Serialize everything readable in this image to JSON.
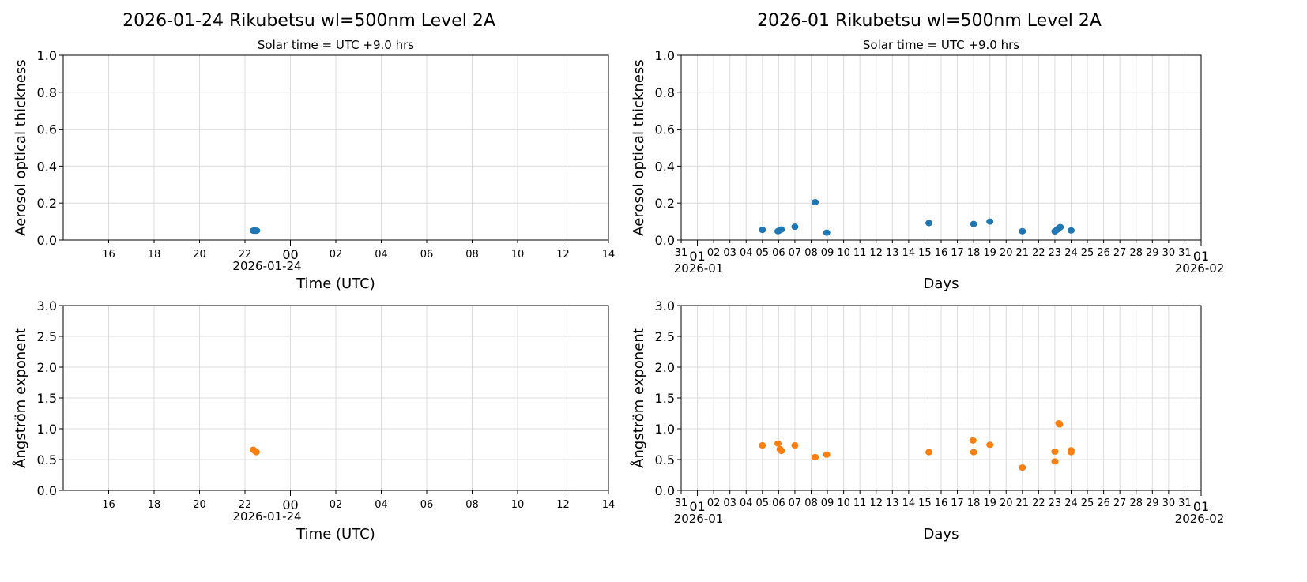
{
  "titles": {
    "left": "2026-01-24  Rikubetsu  wl=500nm  Level 2A",
    "right": "2026-01  Rikubetsu  wl=500nm  Level 2A"
  },
  "chart_data": [
    {
      "type": "scatter",
      "subtitle": "Solar time = UTC +9.0 hrs",
      "xlabel": "Time (UTC)",
      "ylabel": "Aerosol optical thickness",
      "xlim": [
        "2026-01-23T15:00",
        "2026-01-24T15:00"
      ],
      "ylim": [
        0,
        1.0
      ],
      "yticks": [
        "0.0",
        "0.2",
        "0.4",
        "0.6",
        "0.8",
        "1.0"
      ],
      "xticks": [
        "16",
        "18",
        "20",
        "22",
        "00",
        "02",
        "04",
        "06",
        "08",
        "10",
        "12",
        "14"
      ],
      "xdate_label": "2026-01-24",
      "grid": true,
      "color": "#1f77b4",
      "points": [
        [
          "2026-01-23T23:22",
          0.051
        ],
        [
          "2026-01-23T23:25",
          0.052
        ],
        [
          "2026-01-23T23:28",
          0.05
        ],
        [
          "2026-01-23T23:31",
          0.051
        ]
      ]
    },
    {
      "type": "scatter",
      "subtitle": "Solar time = UTC +9.0 hrs",
      "xlabel": "Days",
      "ylabel": "Aerosol optical thickness",
      "xlim": [
        "2025-12-31",
        "2026-02-01"
      ],
      "ylim": [
        0,
        1.0
      ],
      "yticks": [
        "0.0",
        "0.2",
        "0.4",
        "0.6",
        "0.8",
        "1.0"
      ],
      "xdate_labels": [
        "2026-01",
        "2026-02"
      ],
      "grid": true,
      "color": "#1f77b4",
      "points": [
        [
          "2026-01-05T00:00",
          0.055
        ],
        [
          "2026-01-05T23:00",
          0.048
        ],
        [
          "2026-01-06T01:00",
          0.052
        ],
        [
          "2026-01-06T04:00",
          0.057
        ],
        [
          "2026-01-07T00:00",
          0.072
        ],
        [
          "2026-01-08T06:00",
          0.205
        ],
        [
          "2026-01-08T23:00",
          0.04
        ],
        [
          "2026-01-15T06:00",
          0.092
        ],
        [
          "2026-01-18T00:00",
          0.087
        ],
        [
          "2026-01-19T00:00",
          0.1
        ],
        [
          "2026-01-21T00:00",
          0.048
        ],
        [
          "2026-01-23T00:00",
          0.047
        ],
        [
          "2026-01-23T03:00",
          0.055
        ],
        [
          "2026-01-23T06:00",
          0.065
        ],
        [
          "2026-01-23T08:00",
          0.07
        ],
        [
          "2026-01-24T00:00",
          0.052
        ]
      ]
    },
    {
      "type": "scatter",
      "xlabel": "Time (UTC)",
      "ylabel": "Ångström exponent",
      "xlim": [
        "2026-01-23T15:00",
        "2026-01-24T15:00"
      ],
      "ylim": [
        0,
        3.0
      ],
      "yticks": [
        "0.0",
        "0.5",
        "1.0",
        "1.5",
        "2.0",
        "2.5",
        "3.0"
      ],
      "xticks": [
        "16",
        "18",
        "20",
        "22",
        "00",
        "02",
        "04",
        "06",
        "08",
        "10",
        "12",
        "14"
      ],
      "xdate_label": "2026-01-24",
      "grid": true,
      "color": "#ff7f0e",
      "points": [
        [
          "2026-01-23T23:22",
          0.66
        ],
        [
          "2026-01-23T23:26",
          0.64
        ],
        [
          "2026-01-23T23:30",
          0.62
        ]
      ]
    },
    {
      "type": "scatter",
      "xlabel": "Days",
      "ylabel": "Ångström exponent",
      "xlim": [
        "2025-12-31",
        "2026-02-01"
      ],
      "ylim": [
        0,
        3.0
      ],
      "yticks": [
        "0.0",
        "0.5",
        "1.0",
        "1.5",
        "2.0",
        "2.5",
        "3.0"
      ],
      "xdate_labels": [
        "2026-01",
        "2026-02"
      ],
      "grid": true,
      "color": "#ff7f0e",
      "points": [
        [
          "2026-01-05T00:00",
          0.73
        ],
        [
          "2026-01-05T23:00",
          0.76
        ],
        [
          "2026-01-06T02:00",
          0.67
        ],
        [
          "2026-01-06T04:00",
          0.64
        ],
        [
          "2026-01-07T00:00",
          0.73
        ],
        [
          "2026-01-08T06:00",
          0.54
        ],
        [
          "2026-01-08T23:00",
          0.58
        ],
        [
          "2026-01-15T06:00",
          0.62
        ],
        [
          "2026-01-17T23:00",
          0.81
        ],
        [
          "2026-01-18T00:00",
          0.62
        ],
        [
          "2026-01-19T00:00",
          0.74
        ],
        [
          "2026-01-21T00:00",
          0.37
        ],
        [
          "2026-01-23T00:00",
          0.63
        ],
        [
          "2026-01-23T00:00",
          0.47
        ],
        [
          "2026-01-23T06:00",
          1.09
        ],
        [
          "2026-01-23T07:00",
          1.07
        ],
        [
          "2026-01-24T00:00",
          0.65
        ],
        [
          "2026-01-24T00:00",
          0.62
        ]
      ]
    }
  ]
}
